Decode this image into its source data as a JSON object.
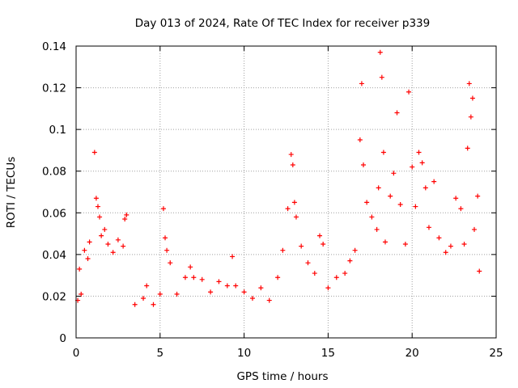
{
  "chart_data": {
    "type": "scatter",
    "title": "Day 013 of 2024, Rate Of TEC Index for receiver p339",
    "xlabel": "GPS time / hours",
    "ylabel": "ROTI / TECUs",
    "xlim": [
      0,
      25
    ],
    "ylim": [
      0,
      0.14
    ],
    "x_ticks": [
      "0",
      "5",
      "10",
      "15",
      "20",
      "25"
    ],
    "y_ticks": [
      "0",
      "0.02",
      "0.04",
      "0.06",
      "0.08",
      "0.1",
      "0.12",
      "0.14"
    ],
    "grid": true,
    "marker": "+",
    "series": [
      {
        "color": "#ff0000",
        "points": [
          [
            0.1,
            0.018
          ],
          [
            0.2,
            0.033
          ],
          [
            0.3,
            0.021
          ],
          [
            0.5,
            0.042
          ],
          [
            0.7,
            0.038
          ],
          [
            0.8,
            0.046
          ],
          [
            1.1,
            0.089
          ],
          [
            1.2,
            0.067
          ],
          [
            1.3,
            0.063
          ],
          [
            1.4,
            0.058
          ],
          [
            1.5,
            0.049
          ],
          [
            1.7,
            0.052
          ],
          [
            1.9,
            0.045
          ],
          [
            2.2,
            0.041
          ],
          [
            2.5,
            0.047
          ],
          [
            2.8,
            0.044
          ],
          [
            2.9,
            0.057
          ],
          [
            3.0,
            0.059
          ],
          [
            3.5,
            0.016
          ],
          [
            4.0,
            0.019
          ],
          [
            4.2,
            0.025
          ],
          [
            4.6,
            0.016
          ],
          [
            5.0,
            0.021
          ],
          [
            5.2,
            0.062
          ],
          [
            5.3,
            0.048
          ],
          [
            5.4,
            0.042
          ],
          [
            5.6,
            0.036
          ],
          [
            6.0,
            0.021
          ],
          [
            6.5,
            0.029
          ],
          [
            6.8,
            0.034
          ],
          [
            7.0,
            0.029
          ],
          [
            7.5,
            0.028
          ],
          [
            8.0,
            0.022
          ],
          [
            8.5,
            0.027
          ],
          [
            9.0,
            0.025
          ],
          [
            9.3,
            0.039
          ],
          [
            9.5,
            0.025
          ],
          [
            10.0,
            0.022
          ],
          [
            10.5,
            0.019
          ],
          [
            11.0,
            0.024
          ],
          [
            11.5,
            0.018
          ],
          [
            12.0,
            0.029
          ],
          [
            12.3,
            0.042
          ],
          [
            12.6,
            0.062
          ],
          [
            12.8,
            0.088
          ],
          [
            12.9,
            0.083
          ],
          [
            13.0,
            0.065
          ],
          [
            13.1,
            0.058
          ],
          [
            13.4,
            0.044
          ],
          [
            13.8,
            0.036
          ],
          [
            14.2,
            0.031
          ],
          [
            14.5,
            0.049
          ],
          [
            14.7,
            0.045
          ],
          [
            15.0,
            0.024
          ],
          [
            15.5,
            0.029
          ],
          [
            16.0,
            0.031
          ],
          [
            16.3,
            0.037
          ],
          [
            16.6,
            0.042
          ],
          [
            16.9,
            0.095
          ],
          [
            17.0,
            0.122
          ],
          [
            17.1,
            0.083
          ],
          [
            17.3,
            0.065
          ],
          [
            17.6,
            0.058
          ],
          [
            17.9,
            0.052
          ],
          [
            18.0,
            0.072
          ],
          [
            18.1,
            0.137
          ],
          [
            18.2,
            0.125
          ],
          [
            18.3,
            0.089
          ],
          [
            18.4,
            0.046
          ],
          [
            18.7,
            0.068
          ],
          [
            18.9,
            0.079
          ],
          [
            19.1,
            0.108
          ],
          [
            19.3,
            0.064
          ],
          [
            19.6,
            0.045
          ],
          [
            19.8,
            0.118
          ],
          [
            20.0,
            0.082
          ],
          [
            20.2,
            0.063
          ],
          [
            20.4,
            0.089
          ],
          [
            20.6,
            0.084
          ],
          [
            20.8,
            0.072
          ],
          [
            21.0,
            0.053
          ],
          [
            21.3,
            0.075
          ],
          [
            21.6,
            0.048
          ],
          [
            22.0,
            0.041
          ],
          [
            22.3,
            0.044
          ],
          [
            22.6,
            0.067
          ],
          [
            22.9,
            0.062
          ],
          [
            23.1,
            0.045
          ],
          [
            23.3,
            0.091
          ],
          [
            23.4,
            0.122
          ],
          [
            23.5,
            0.106
          ],
          [
            23.6,
            0.115
          ],
          [
            23.7,
            0.052
          ],
          [
            23.9,
            0.068
          ],
          [
            24.0,
            0.032
          ]
        ]
      }
    ]
  }
}
